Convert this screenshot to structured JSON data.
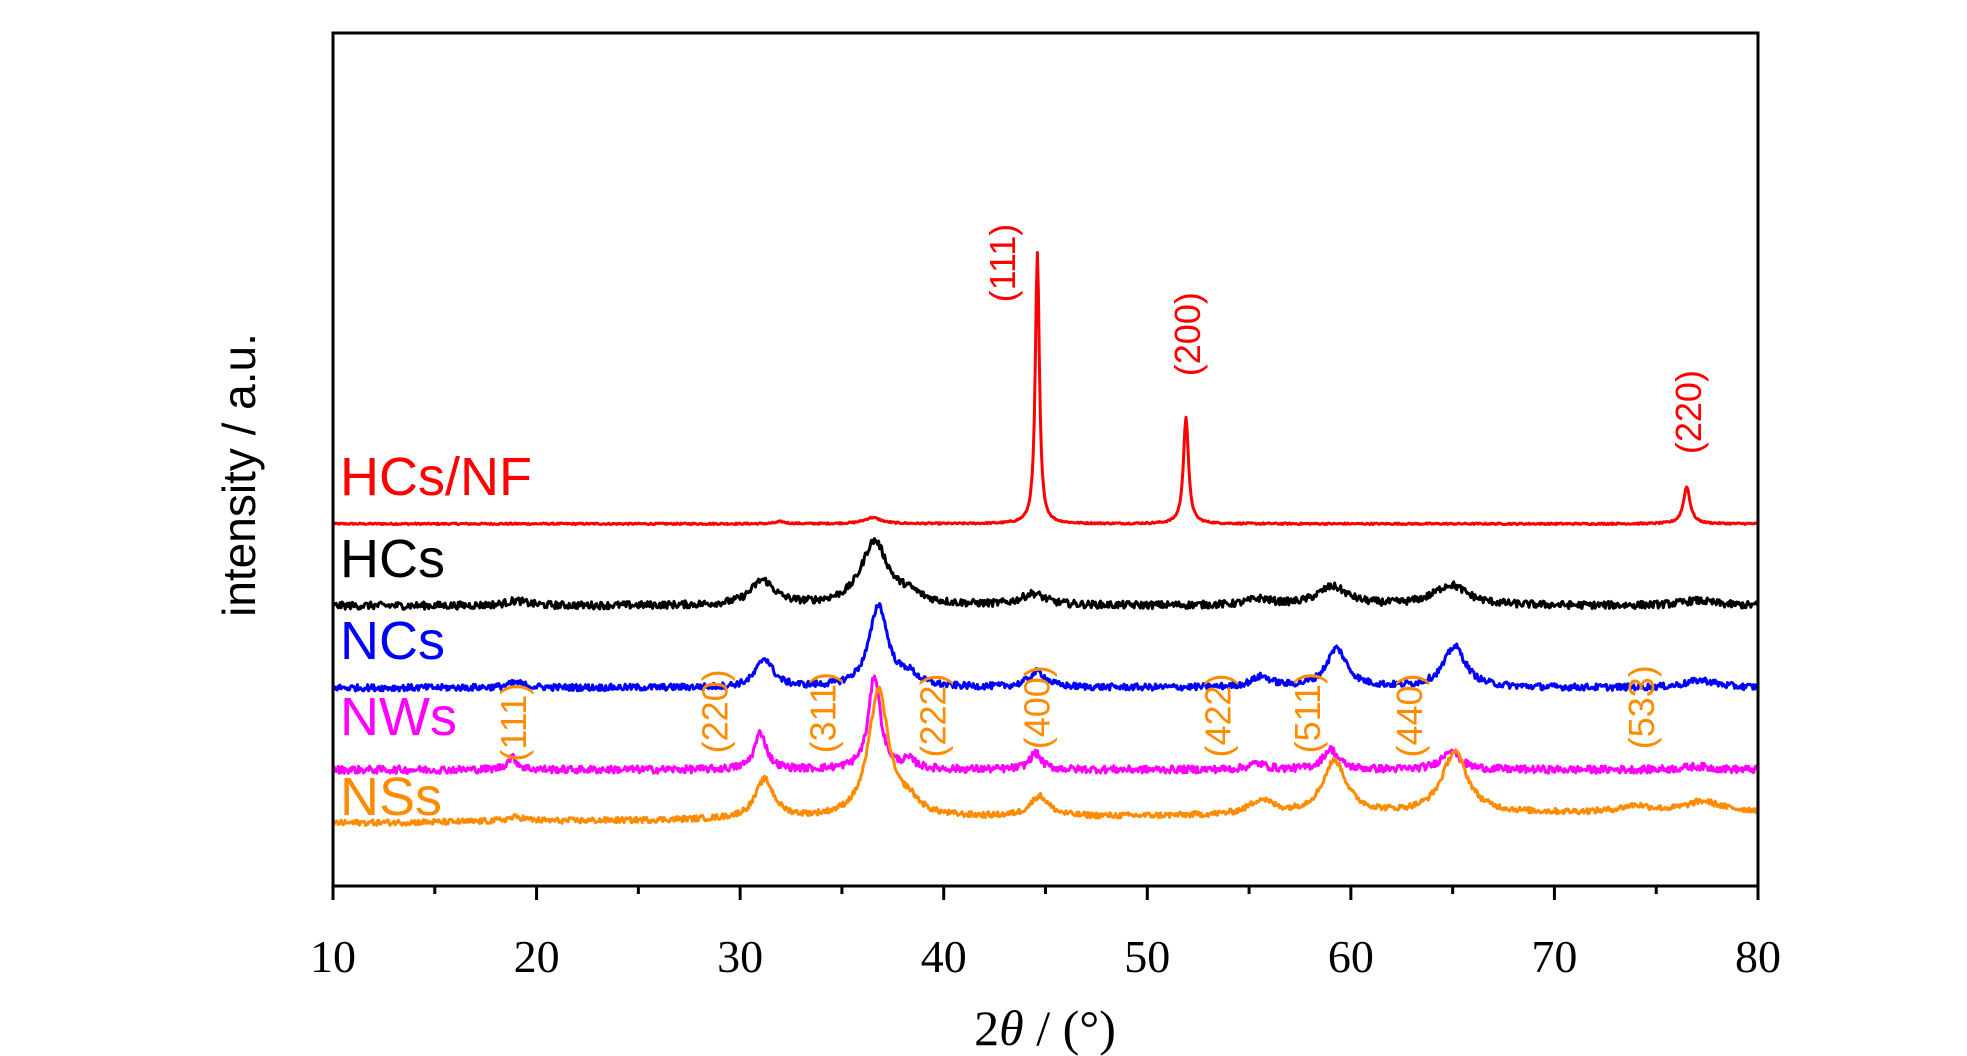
{
  "chart_data": {
    "type": "line",
    "xlabel_prefix": "2",
    "xlabel_symbol": "θ",
    "xlabel_suffix": " / (°)",
    "ylabel": "intensity / a.u.",
    "xlim": [
      10,
      80
    ],
    "ylim": [
      0,
      10
    ],
    "x_ticks": [
      "10",
      "20",
      "30",
      "40",
      "50",
      "60",
      "70",
      "80"
    ],
    "grid": false,
    "legend": "inline labels",
    "series": [
      {
        "name": "HCs/NF",
        "color": "#ff0000",
        "baseline": 8.2,
        "noise": 0.02,
        "peaks": [
          [
            32,
            0.05,
            0.3
          ],
          [
            36.5,
            0.15,
            0.5
          ],
          [
            44.6,
            6.6,
            0.12
          ],
          [
            51.9,
            2.6,
            0.15
          ],
          [
            76.5,
            0.9,
            0.2
          ]
        ]
      },
      {
        "name": "HCs",
        "color": "#000000",
        "baseline": 6.2,
        "noise": 0.09,
        "peaks": [
          [
            19,
            0.12,
            0.6
          ],
          [
            31.1,
            0.6,
            0.7
          ],
          [
            36.6,
            1.55,
            0.8
          ],
          [
            38.3,
            0.2,
            0.7
          ],
          [
            44.4,
            0.28,
            0.7
          ],
          [
            55.5,
            0.15,
            0.7
          ],
          [
            59.1,
            0.45,
            0.9
          ],
          [
            64.9,
            0.5,
            1.0
          ],
          [
            77,
            0.12,
            1.0
          ]
        ]
      },
      {
        "name": "NCs",
        "color": "#0000ff",
        "baseline": 4.2,
        "noise": 0.08,
        "peaks": [
          [
            19,
            0.12,
            0.5
          ],
          [
            31.2,
            0.7,
            0.5
          ],
          [
            36.8,
            2.0,
            0.55
          ],
          [
            38.3,
            0.25,
            0.5
          ],
          [
            44.6,
            0.38,
            0.5
          ],
          [
            55.6,
            0.25,
            0.6
          ],
          [
            59.3,
            0.95,
            0.6
          ],
          [
            65.1,
            1.0,
            0.65
          ],
          [
            77.2,
            0.18,
            0.9
          ]
        ]
      },
      {
        "name": "NWs",
        "color": "#ff00ff",
        "baseline": 2.2,
        "noise": 0.09,
        "peaks": [
          [
            18.8,
            0.3,
            0.3
          ],
          [
            31.0,
            0.9,
            0.35
          ],
          [
            36.6,
            2.3,
            0.35
          ],
          [
            38.3,
            0.2,
            0.4
          ],
          [
            44.5,
            0.4,
            0.35
          ],
          [
            55.4,
            0.15,
            0.5
          ],
          [
            59.0,
            0.5,
            0.45
          ],
          [
            64.9,
            0.5,
            0.5
          ],
          [
            77.0,
            0.08,
            0.8
          ]
        ]
      },
      {
        "name": "NSs",
        "color": "#ff8c00",
        "baseline": 0.9,
        "noise": 0.07,
        "peaks": [
          [
            19,
            0.1,
            0.6
          ],
          [
            31.2,
            0.95,
            0.55
          ],
          [
            36.8,
            3.1,
            0.6
          ],
          [
            38.3,
            0.3,
            0.6
          ],
          [
            44.7,
            0.5,
            0.55
          ],
          [
            55.6,
            0.35,
            0.7
          ],
          [
            59.2,
            1.3,
            0.7
          ],
          [
            65.1,
            1.5,
            0.75
          ],
          [
            74,
            0.15,
            0.9
          ],
          [
            77.3,
            0.25,
            1.0
          ]
        ]
      }
    ],
    "series_labels": [
      {
        "text": "HCs/NF",
        "color": "#ff0000"
      },
      {
        "text": "HCs",
        "color": "#000000"
      },
      {
        "text": "NCs",
        "color": "#0000ff"
      },
      {
        "text": "NWs",
        "color": "#ff00ff"
      },
      {
        "text": "NSs",
        "color": "#ff8c00"
      }
    ],
    "annotations": [
      {
        "text": "(111)",
        "color": "#ff0000",
        "x": 42.9,
        "y": 13.6
      },
      {
        "text": "(200)",
        "color": "#ff0000",
        "x": 52.0,
        "y": 11.8
      },
      {
        "text": "(220)",
        "color": "#ff0000",
        "x": 76.6,
        "y": 9.9
      },
      {
        "text": "(111)",
        "color": "#ff8c00",
        "x": 18.9,
        "y": 2.4
      },
      {
        "text": "(220)",
        "color": "#ff8c00",
        "x": 28.8,
        "y": 2.6
      },
      {
        "text": "(311)",
        "color": "#ff8c00",
        "x": 34.1,
        "y": 2.6
      },
      {
        "text": "(222)",
        "color": "#ff8c00",
        "x": 39.5,
        "y": 2.5
      },
      {
        "text": "(400)",
        "color": "#ff8c00",
        "x": 44.6,
        "y": 2.7
      },
      {
        "text": "(422)",
        "color": "#ff8c00",
        "x": 53.5,
        "y": 2.5
      },
      {
        "text": "(511)",
        "color": "#ff8c00",
        "x": 57.9,
        "y": 2.6
      },
      {
        "text": "(440)",
        "color": "#ff8c00",
        "x": 62.9,
        "y": 2.5
      },
      {
        "text": "(533)",
        "color": "#ff8c00",
        "x": 74.3,
        "y": 2.7
      }
    ]
  }
}
